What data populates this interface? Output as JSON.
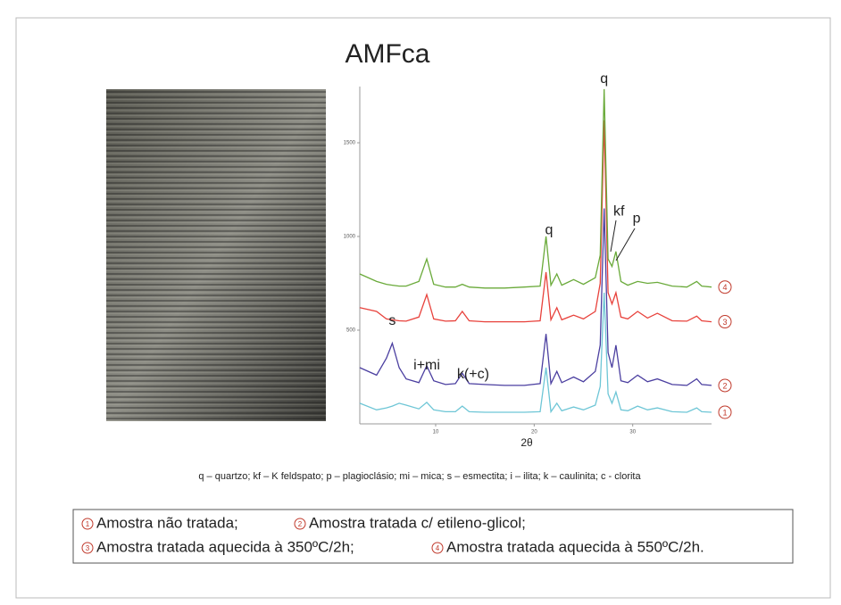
{
  "chart_data": {
    "type": "line",
    "title": "AMFca",
    "xlabel": "2θ",
    "caption": "q – quartzo; kf – K feldspato; p – plagioclásio; mi – mica; s – esmectita; i – ilita; k – caulinita; c - clorita",
    "legend": [
      "Amostra não tratada;",
      "Amostra tratada c/ etileno-glicol;",
      "Amostra tratada aquecida à 350ºC/2h;",
      "Amostra tratada aquecida à 550ºC/2h."
    ],
    "xlim": [
      2.3,
      38
    ],
    "ylim": [
      0,
      1800
    ],
    "xticks": [
      10,
      20,
      30
    ],
    "yticks": [
      500,
      1000,
      1500
    ],
    "x": [
      2.3,
      4,
      5,
      5.6,
      6.3,
      7,
      8.3,
      9.1,
      9.8,
      11,
      12,
      12.7,
      13.4,
      15,
      17,
      19,
      20.6,
      21.2,
      21.7,
      22.3,
      22.8,
      24,
      25,
      26.2,
      26.7,
      27.1,
      27.5,
      27.9,
      28.3,
      28.8,
      29.5,
      30.5,
      31.5,
      32.5,
      34,
      35.5,
      36.5,
      37,
      38
    ],
    "series": [
      {
        "name": "1",
        "color": "#6ec6d6",
        "values": [
          110,
          75,
          85,
          95,
          110,
          100,
          80,
          115,
          75,
          65,
          65,
          95,
          65,
          62,
          62,
          62,
          65,
          300,
          65,
          110,
          70,
          90,
          75,
          100,
          200,
          700,
          160,
          110,
          170,
          75,
          70,
          95,
          75,
          85,
          65,
          62,
          85,
          65,
          62
        ]
      },
      {
        "name": "2",
        "color": "#4b3fa0",
        "values": [
          300,
          260,
          350,
          430,
          300,
          240,
          220,
          310,
          230,
          210,
          215,
          270,
          215,
          210,
          205,
          205,
          215,
          480,
          215,
          280,
          220,
          250,
          225,
          280,
          420,
          1150,
          380,
          300,
          420,
          230,
          220,
          260,
          225,
          240,
          210,
          205,
          240,
          210,
          205
        ]
      },
      {
        "name": "3",
        "color": "#e8423c",
        "values": [
          620,
          600,
          560,
          555,
          550,
          548,
          570,
          690,
          560,
          548,
          550,
          600,
          550,
          545,
          545,
          545,
          550,
          810,
          555,
          620,
          555,
          580,
          560,
          600,
          750,
          1620,
          700,
          640,
          700,
          570,
          560,
          600,
          565,
          590,
          550,
          548,
          575,
          550,
          545
        ]
      },
      {
        "name": "4",
        "color": "#6aaa3a",
        "values": [
          800,
          760,
          745,
          740,
          735,
          735,
          760,
          880,
          745,
          730,
          730,
          745,
          730,
          725,
          725,
          730,
          735,
          1000,
          740,
          800,
          740,
          770,
          745,
          780,
          900,
          1786,
          880,
          840,
          920,
          760,
          740,
          760,
          750,
          755,
          735,
          730,
          760,
          735,
          730
        ]
      }
    ],
    "annotations": [
      {
        "text": "q",
        "x": 27.1,
        "y": 1840
      },
      {
        "text": "kf",
        "x": 28.6,
        "y": 1133
      },
      {
        "text": "p",
        "x": 30.4,
        "y": 1095
      },
      {
        "text": "q",
        "x": 21.5,
        "y": 1033
      },
      {
        "text": "s",
        "x": 5.6,
        "y": 548
      },
      {
        "text": "i+mi",
        "x": 9.1,
        "y": 310
      },
      {
        "text": "k(+c)",
        "x": 13.8,
        "y": 262
      }
    ]
  }
}
